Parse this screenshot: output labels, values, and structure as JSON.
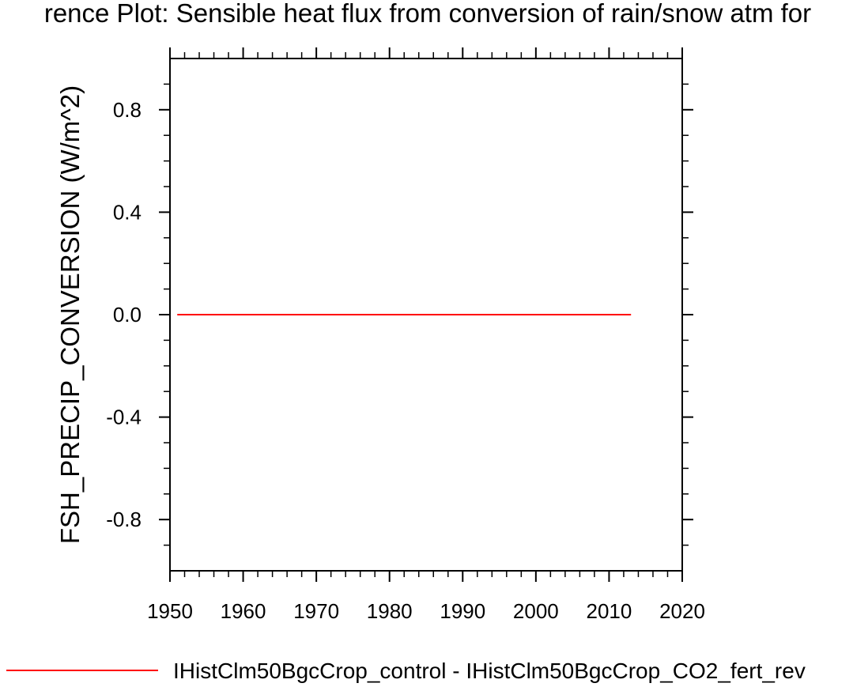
{
  "chart_data": {
    "type": "line",
    "title": "rence Plot: Sensible heat flux from conversion of rain/snow atm for",
    "xlabel": "",
    "ylabel": "FSH_PRECIP_CONVERSION  (W/m^2)",
    "xlim": [
      1950,
      2020
    ],
    "ylim": [
      -1.0,
      1.0
    ],
    "xticks": [
      1950,
      1960,
      1970,
      1980,
      1990,
      2000,
      2010,
      2020
    ],
    "yticks": [
      0.8,
      0.4,
      0.0,
      -0.4,
      -0.8
    ],
    "xtick_labels": [
      "1950",
      "1960",
      "1970",
      "1980",
      "1990",
      "2000",
      "2010",
      "2020"
    ],
    "ytick_labels": [
      "0.8",
      "0.4",
      "0.0",
      "-0.4",
      "-0.8"
    ],
    "grid": false,
    "legend_position": "bottom",
    "series": [
      {
        "name": "IHistClm50BgcCrop_control - IHistClm50BgcCrop_CO2_fert_rev",
        "color": "#ff0000",
        "x": [
          1951,
          2013
        ],
        "y": [
          0.0,
          0.0
        ]
      }
    ]
  }
}
